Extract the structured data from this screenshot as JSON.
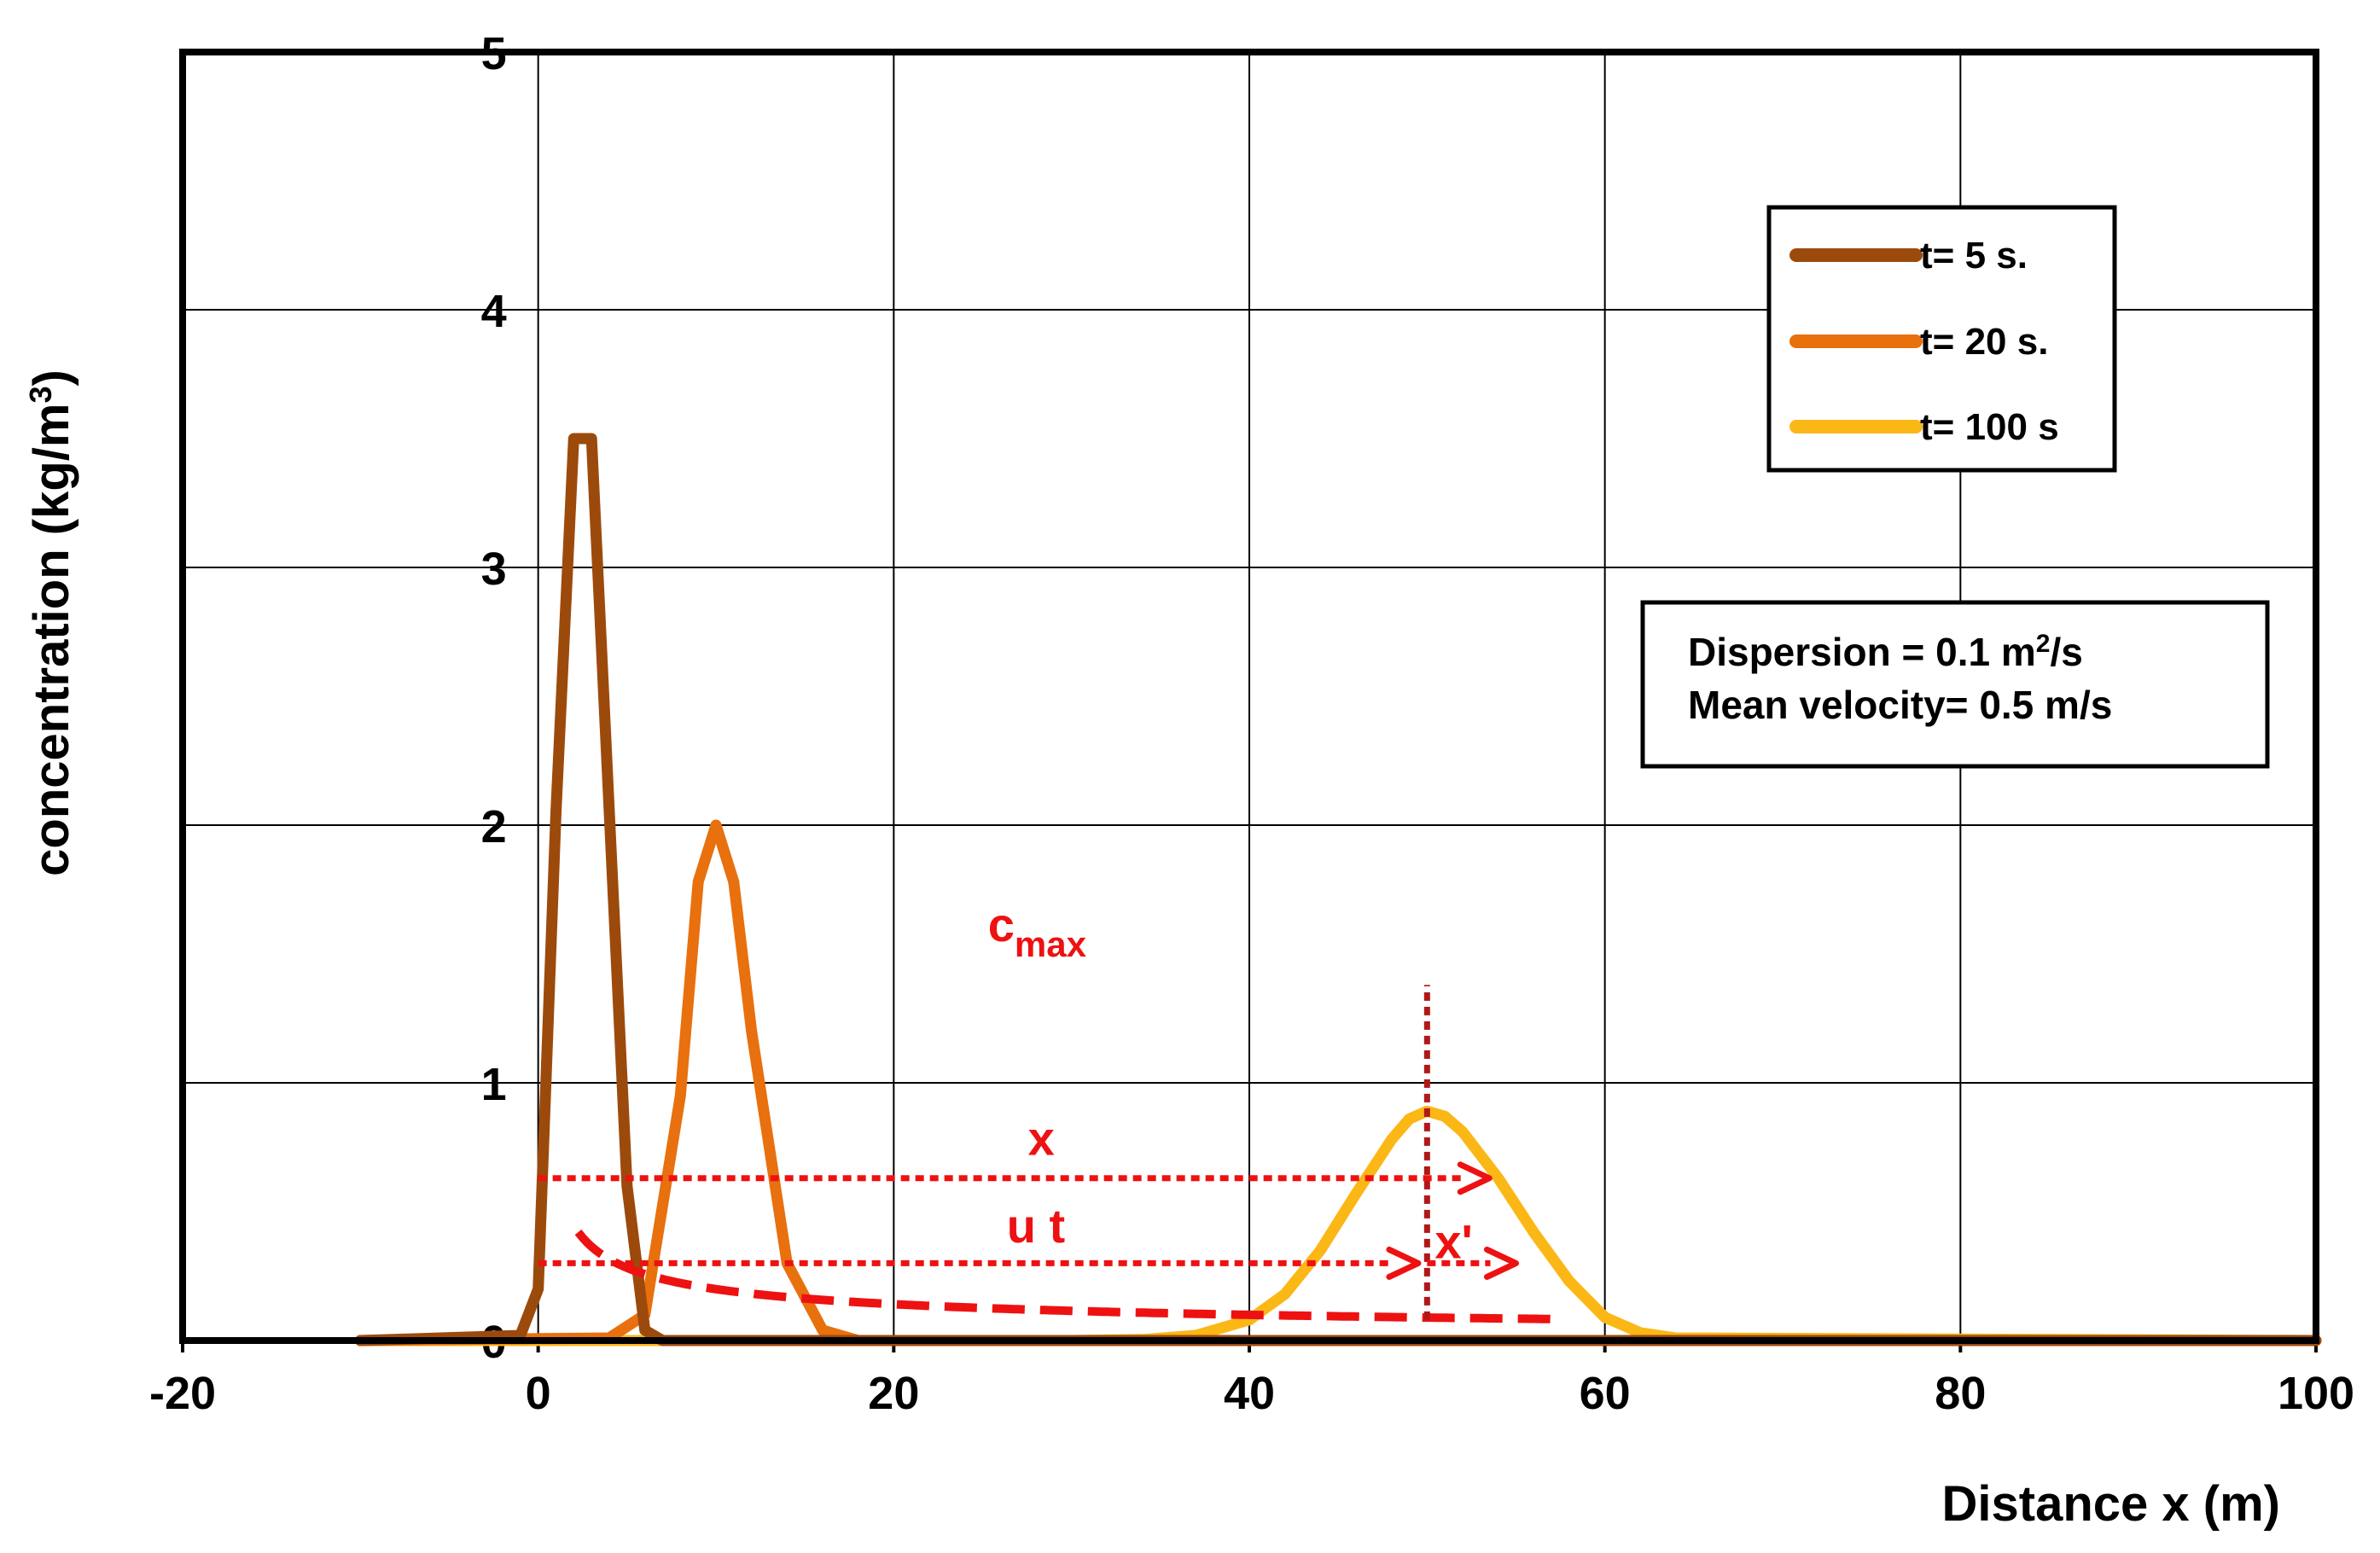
{
  "chart_data": {
    "type": "line",
    "title": "",
    "xlabel": "Distance x (m)",
    "ylabel": "concentration (kg/m³)",
    "ylabel_parts": {
      "base": "concentration (kg/m",
      "sup": "3",
      "end": ")"
    },
    "xlim": [
      -20,
      100
    ],
    "ylim": [
      0,
      5
    ],
    "x_ticks": [
      -20,
      0,
      20,
      40,
      60,
      80,
      100
    ],
    "x_tick_labels": [
      "-20",
      "0",
      "20",
      "40",
      "60",
      "80",
      "100"
    ],
    "y_ticks": [
      0,
      1,
      2,
      3,
      4,
      5
    ],
    "y_tick_labels": [
      "0",
      "1",
      "2",
      "3",
      "4",
      "5"
    ],
    "grid": true,
    "legend_position": "top-right",
    "series": [
      {
        "name": "t= 5 s.",
        "color": "#9c4a0c",
        "x": [
          -10,
          -1,
          0,
          1,
          2,
          3,
          4,
          5,
          6,
          7,
          10,
          100
        ],
        "y": [
          0,
          0.02,
          0.2,
          2.05,
          3.5,
          3.5,
          2.05,
          0.6,
          0.04,
          0,
          0,
          0
        ]
      },
      {
        "name": "t= 20 s.",
        "color": "#e8700e",
        "x": [
          -10,
          4,
          6,
          8,
          9,
          10,
          11,
          12,
          14,
          16,
          18,
          100
        ],
        "y": [
          0,
          0.01,
          0.1,
          0.95,
          1.78,
          2.0,
          1.78,
          1.2,
          0.3,
          0.04,
          0,
          0
        ]
      },
      {
        "name": "t= 100 s",
        "color": "#fbb716",
        "x": [
          -10,
          30,
          34,
          37,
          40,
          42,
          44,
          46,
          48,
          49,
          50,
          51,
          52,
          54,
          56,
          58,
          60,
          62,
          64,
          100
        ],
        "y": [
          0,
          0.0,
          0.004,
          0.02,
          0.08,
          0.18,
          0.35,
          0.57,
          0.78,
          0.86,
          0.89,
          0.87,
          0.81,
          0.63,
          0.42,
          0.23,
          0.09,
          0.03,
          0.01,
          0
        ]
      }
    ],
    "cmax_curve": {
      "label": "c",
      "label_sub": "max",
      "color": "#ee1111",
      "x_start": 2.25,
      "x_end": 57
    },
    "annotations": [
      {
        "label": "x",
        "from_x": 0,
        "to_x": 53.5,
        "y": 0.63
      },
      {
        "label": "u t",
        "from_x": 0,
        "to_x": 49.5,
        "y": 0.3
      },
      {
        "label": "x'",
        "from_x": 50,
        "to_x": 55,
        "y": 0.3
      }
    ],
    "center_marker": {
      "x": 50,
      "y_from": 0.08,
      "y_to": 1.38
    },
    "info_box": {
      "dispersion": {
        "base": "Dispersion = 0.1 m",
        "sup": "2",
        "end": "/s"
      },
      "velocity": "Mean velocity= 0.5 m/s"
    }
  }
}
